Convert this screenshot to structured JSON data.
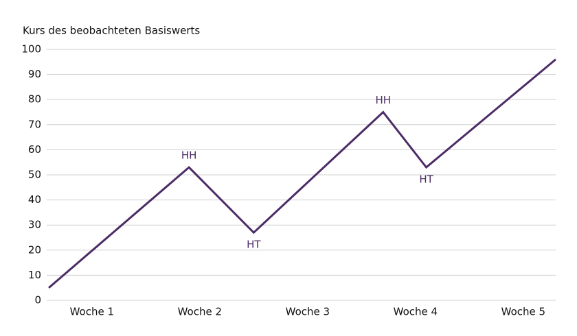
{
  "chart_data": {
    "type": "line",
    "y_axis_label": "Kurs des beobachteten Basiswerts",
    "x": [
      0.6,
      1.9,
      2.5,
      3.7,
      4.1,
      5.3
    ],
    "series": [
      {
        "color": "#4b2c66",
        "values": [
          5,
          53,
          27,
          75,
          53,
          96
        ],
        "point_labels": [
          null,
          "HH",
          "HT",
          "HH",
          "HT",
          null
        ]
      }
    ],
    "xlim": [
      0.6,
      5.3
    ],
    "xticks": [
      {
        "value": 1,
        "label": "Woche 1"
      },
      {
        "value": 2,
        "label": "Woche 2"
      },
      {
        "value": 3,
        "label": "Woche 3"
      },
      {
        "value": 4,
        "label": "Woche 4"
      },
      {
        "value": 5,
        "label": "Woche 5"
      }
    ],
    "ylim": [
      0,
      100
    ],
    "yticks": [
      0,
      10,
      20,
      30,
      40,
      50,
      60,
      70,
      80,
      90,
      100
    ],
    "grid": true
  }
}
